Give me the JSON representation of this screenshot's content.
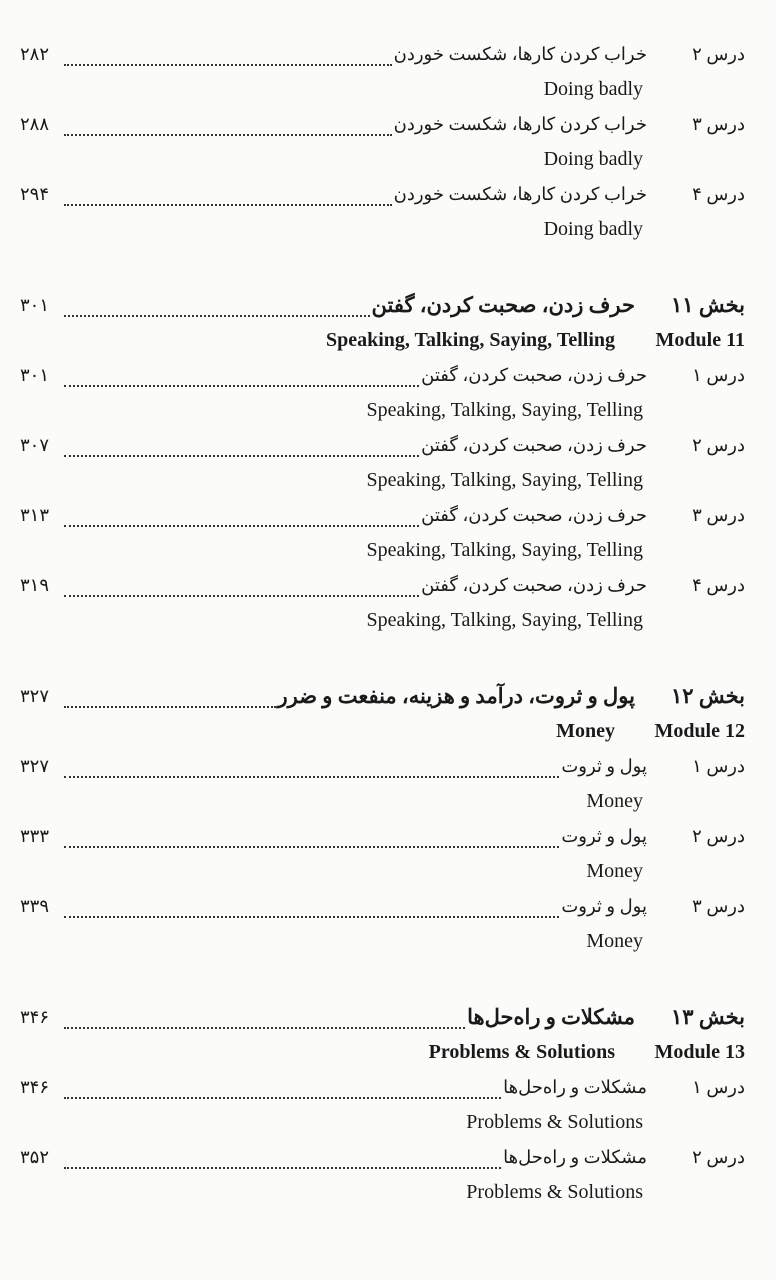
{
  "sections": [
    {
      "module": null,
      "lessons": [
        {
          "label": "درس ۲",
          "title": "خراب کردن کارها، شکست خوردن",
          "english": "Doing badly",
          "page": "۲۸۲"
        },
        {
          "label": "درس ۳",
          "title": "خراب کردن کارها، شکست خوردن",
          "english": "Doing badly",
          "page": "۲۸۸"
        },
        {
          "label": "درس ۴",
          "title": "خراب کردن کارها، شکست خوردن",
          "english": "Doing badly",
          "page": "۲۹۴"
        }
      ]
    },
    {
      "module": {
        "label": "بخش ۱۱",
        "title": "حرف زدن، صحبت کردن، گفتن",
        "page": "۳۰۱",
        "module_label": "Module 11",
        "english": "Speaking, Talking, Saying, Telling"
      },
      "lessons": [
        {
          "label": "درس ۱",
          "title": "حرف زدن، صحبت کردن، گفتن",
          "english": "Speaking, Talking, Saying, Telling",
          "page": "۳۰۱"
        },
        {
          "label": "درس ۲",
          "title": "حرف زدن، صحبت کردن، گفتن",
          "english": "Speaking, Talking, Saying, Telling",
          "page": "۳۰۷"
        },
        {
          "label": "درس ۳",
          "title": "حرف زدن، صحبت کردن، گفتن",
          "english": "Speaking, Talking, Saying, Telling",
          "page": "۳۱۳"
        },
        {
          "label": "درس ۴",
          "title": "حرف زدن، صحبت کردن، گفتن",
          "english": "Speaking, Talking, Saying, Telling",
          "page": "۳۱۹"
        }
      ]
    },
    {
      "module": {
        "label": "بخش ۱۲",
        "title": "پول و ثروت، درآمد و هزینه، منفعت و ضرر",
        "page": "۳۲۷",
        "module_label": "Module 12",
        "english": "Money"
      },
      "lessons": [
        {
          "label": "درس ۱",
          "title": "پول و ثروت",
          "english": "Money",
          "page": "۳۲۷"
        },
        {
          "label": "درس ۲",
          "title": "پول و ثروت",
          "english": "Money",
          "page": "۳۳۳"
        },
        {
          "label": "درس ۳",
          "title": "پول و ثروت",
          "english": "Money",
          "page": "۳۳۹"
        }
      ]
    },
    {
      "module": {
        "label": "بخش ۱۳",
        "title": "مشکلات و راه‌حل‌ها",
        "page": "۳۴۶",
        "module_label": "Module 13",
        "english": "Problems & Solutions"
      },
      "lessons": [
        {
          "label": "درس ۱",
          "title": "مشکلات و راه‌حل‌ها",
          "english": "Problems & Solutions",
          "page": "۳۴۶"
        },
        {
          "label": "درس ۲",
          "title": "مشکلات و راه‌حل‌ها",
          "english": "Problems & Solutions",
          "page": "۳۵۲"
        }
      ]
    }
  ]
}
